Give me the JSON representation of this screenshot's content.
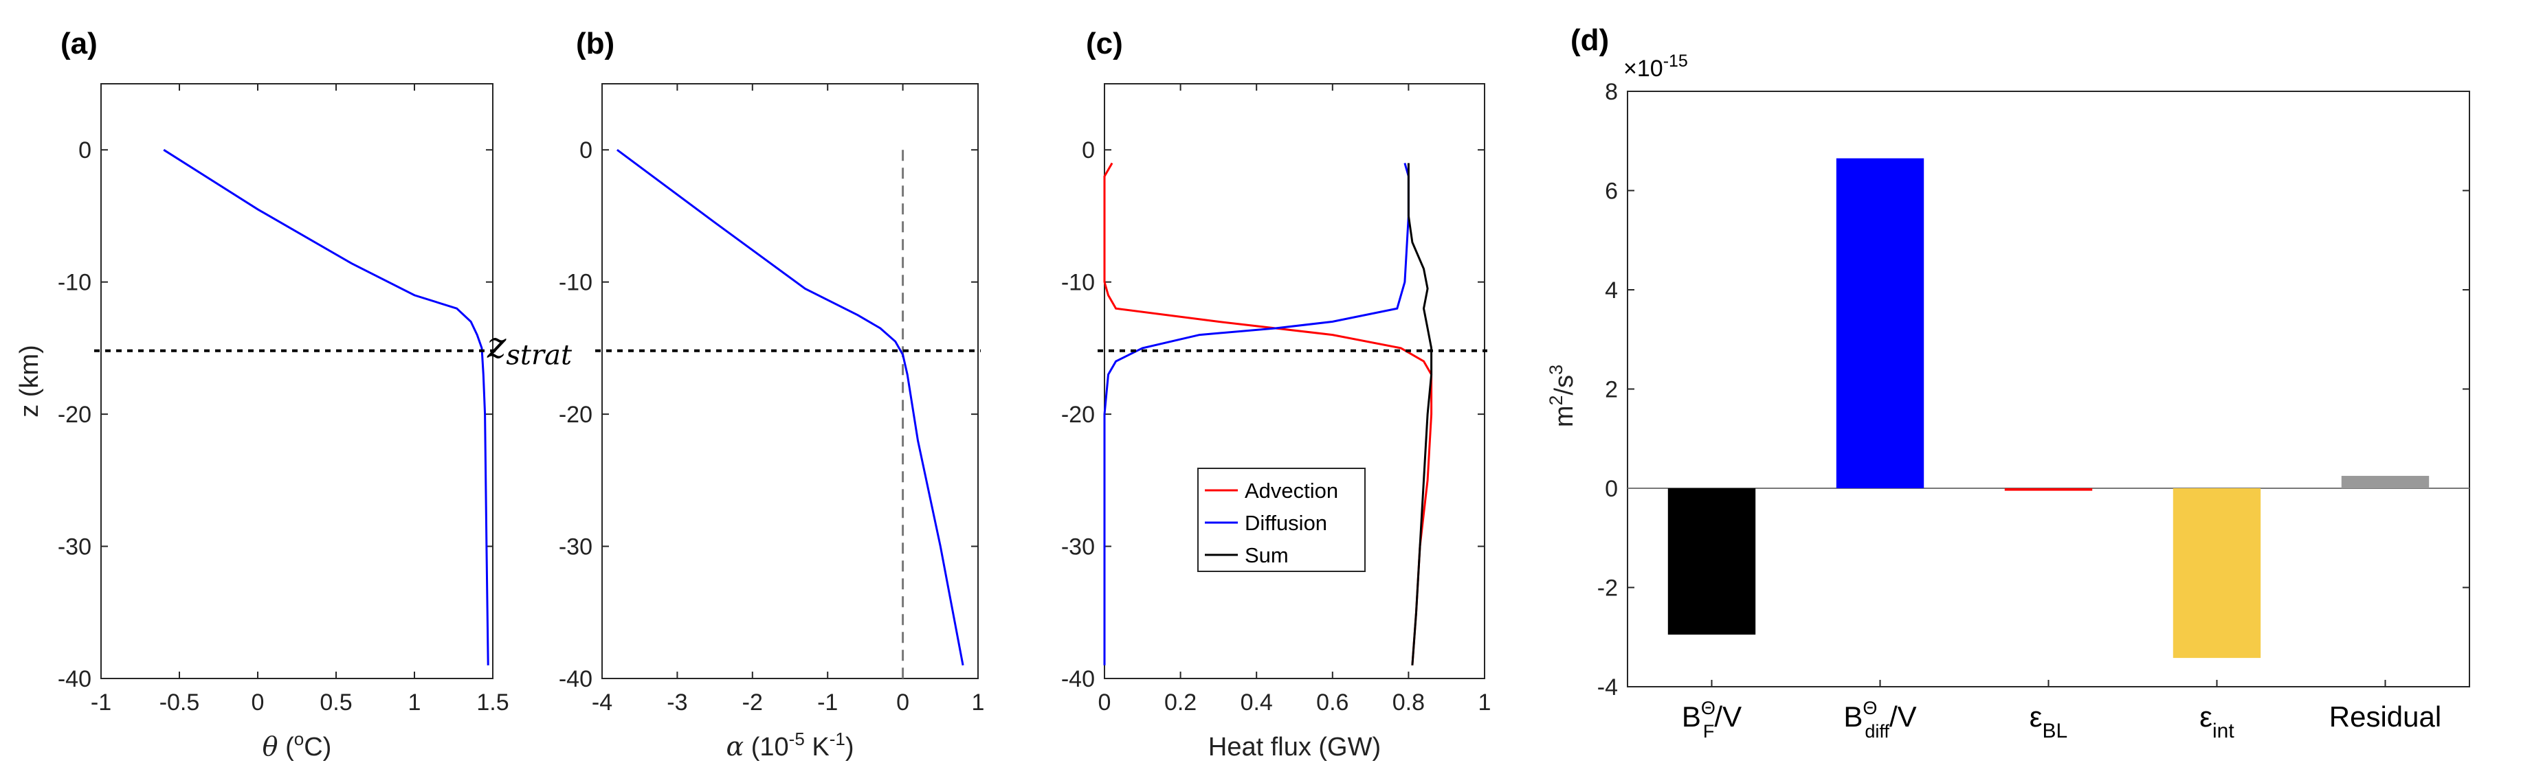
{
  "chart_data": [
    {
      "panel": "(a)",
      "type": "line",
      "xlabel": {
        "sym": "θ",
        "pre": " (",
        "sup": "o",
        "post": "C)"
      },
      "ylabel": "z (km)",
      "xlim": [
        -1,
        1.5
      ],
      "ylim": [
        -40,
        5
      ],
      "xticks": [
        -1,
        -0.5,
        0,
        0.5,
        1,
        1.5
      ],
      "xtick_labels": [
        "-1",
        "-0.5",
        "0",
        "0.5",
        "1",
        "1.5"
      ],
      "yticks": [
        0,
        -10,
        -20,
        -30,
        -40
      ],
      "ytick_labels": [
        "0",
        "-10",
        "-20",
        "-30",
        "-40"
      ],
      "series": [
        {
          "name": "theta",
          "color": "#0000ff",
          "x": [
            -0.6,
            0.0,
            0.6,
            1.0,
            1.27,
            1.36,
            1.4,
            1.43,
            1.44,
            1.45,
            1.46,
            1.47
          ],
          "y": [
            0,
            -4.5,
            -8.6,
            -11.0,
            -12.0,
            -13.0,
            -14.0,
            -15.0,
            -17.0,
            -20.0,
            -30.0,
            -39.0
          ]
        }
      ],
      "hline": {
        "y": -15.2,
        "style": "dotted"
      }
    },
    {
      "panel": "(b)",
      "type": "line",
      "xlabel": {
        "sym": "α",
        "pre": " (10",
        "sup": "-5",
        "mid": " K",
        "sup2": "-1",
        "post": ")"
      },
      "xlim": [
        -4,
        1
      ],
      "ylim": [
        -40,
        5
      ],
      "xticks": [
        -4,
        -3,
        -2,
        -1,
        0,
        1
      ],
      "xtick_labels": [
        "-4",
        "-3",
        "-2",
        "-1",
        "0",
        "1"
      ],
      "yticks": [
        0,
        -10,
        -20,
        -30,
        -40
      ],
      "ytick_labels": [
        "0",
        "-10",
        "-20",
        "-30",
        "-40"
      ],
      "series": [
        {
          "name": "alpha",
          "color": "#0000ff",
          "x": [
            -3.8,
            -2.5,
            -1.3,
            -0.6,
            -0.3,
            -0.1,
            0.0,
            0.06,
            0.2,
            0.5,
            0.8
          ],
          "y": [
            0,
            -5.5,
            -10.5,
            -12.5,
            -13.5,
            -14.5,
            -15.5,
            -17.0,
            -22.0,
            -30.0,
            -39.0
          ]
        }
      ],
      "vline": {
        "x": 0,
        "style": "dashed",
        "from": 0,
        "to": -40
      },
      "hline": {
        "y": -15.2,
        "style": "dotted"
      },
      "annotation": {
        "text": "z",
        "sub": "strat",
        "x": -0.04,
        "y": -15.2
      }
    },
    {
      "panel": "(c)",
      "type": "line",
      "xlabel": {
        "text": "Heat flux (GW)"
      },
      "xlim": [
        0,
        1
      ],
      "ylim": [
        -40,
        5
      ],
      "xticks": [
        0,
        0.2,
        0.4,
        0.6,
        0.8,
        1
      ],
      "xtick_labels": [
        "0",
        "0.2",
        "0.4",
        "0.6",
        "0.8",
        "1"
      ],
      "yticks": [
        0,
        -10,
        -20,
        -30,
        -40
      ],
      "ytick_labels": [
        "0",
        "-10",
        "-20",
        "-30",
        "-40"
      ],
      "series": [
        {
          "name": "Advection",
          "color": "#ff0000",
          "x": [
            0.02,
            0.0,
            0.0,
            0.0,
            0.01,
            0.03,
            0.3,
            0.6,
            0.78,
            0.84,
            0.86,
            0.86,
            0.85,
            0.83,
            0.82,
            0.81
          ],
          "y": [
            -1,
            -2,
            -5,
            -10,
            -11,
            -12,
            -13,
            -14,
            -15,
            -16,
            -17,
            -20,
            -25,
            -30,
            -35,
            -39
          ]
        },
        {
          "name": "Diffusion",
          "color": "#0000ff",
          "x": [
            0.79,
            0.8,
            0.8,
            0.79,
            0.77,
            0.6,
            0.45,
            0.25,
            0.1,
            0.03,
            0.01,
            0.0,
            0.0,
            0.0
          ],
          "y": [
            -1,
            -2,
            -5,
            -10,
            -12,
            -13,
            -13.5,
            -14,
            -15,
            -16,
            -17,
            -20,
            -30,
            -39
          ]
        },
        {
          "name": "Sum",
          "color": "#000000",
          "x": [
            0.8,
            0.8,
            0.81,
            0.84,
            0.85,
            0.84,
            0.85,
            0.86,
            0.86,
            0.85,
            0.83,
            0.82,
            0.81
          ],
          "y": [
            -1,
            -5,
            -7,
            -9,
            -10.5,
            -12,
            -13.5,
            -15,
            -17,
            -20,
            -30,
            -35,
            -39
          ]
        }
      ],
      "hline": {
        "y": -15.2,
        "style": "dotted"
      },
      "legend": {
        "entries": [
          "Advection",
          "Diffusion",
          "Sum"
        ],
        "placement": "center-left"
      }
    },
    {
      "panel": "(d)",
      "type": "bar",
      "categories": [
        {
          "base": "B",
          "sup": "Θ",
          "sub": "F",
          "post": "/V"
        },
        {
          "base": "B",
          "sup": "Θ",
          "sub": "diff",
          "post": "/V"
        },
        {
          "base": "ε",
          "sub": "BL"
        },
        {
          "base": "ε",
          "sub": "int"
        },
        {
          "base": "Residual"
        }
      ],
      "values": [
        -2.95,
        6.65,
        -0.05,
        -3.42,
        0.25
      ],
      "colors": [
        "#000000",
        "#0000ff",
        "#ff0000",
        "#f6cb47",
        "#999999"
      ],
      "ylim": [
        -4,
        8
      ],
      "yticks": [
        -4,
        -2,
        0,
        2,
        4,
        6,
        8
      ],
      "ytick_labels": [
        "-4",
        "-2",
        "0",
        "2",
        "4",
        "6",
        "8"
      ],
      "scale_label": {
        "base": "×10",
        "sup": "-15"
      },
      "ylabel": {
        "base": "m",
        "sup1": "2",
        "mid": "/s",
        "sup2": "3"
      }
    }
  ]
}
